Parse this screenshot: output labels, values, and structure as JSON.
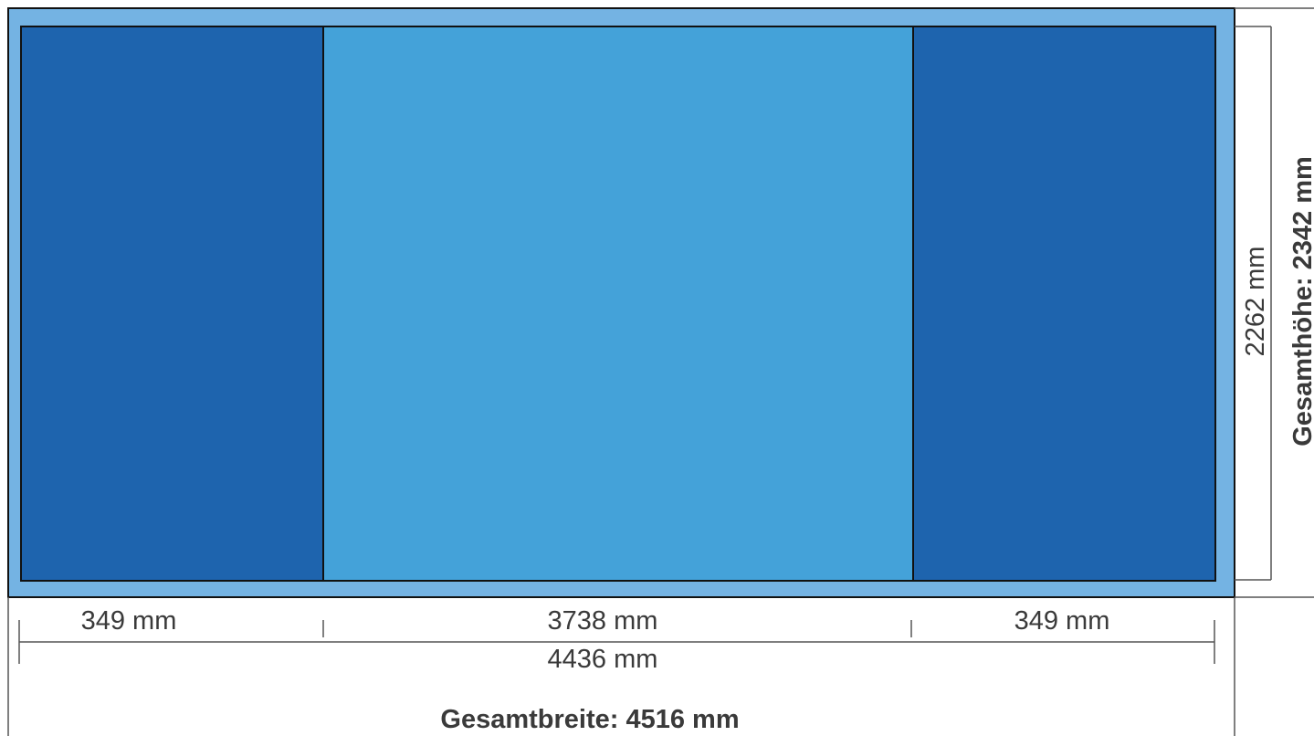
{
  "colors": {
    "frame": "#74b3e3",
    "side_panel": "#1e64ae",
    "center_panel": "#44a2d9",
    "outline": "#111111",
    "dim_line": "#555555",
    "text": "#3a3a3a"
  },
  "panels": [
    {
      "id": "left",
      "width_mm": 349,
      "color": "side"
    },
    {
      "id": "center",
      "width_mm": 3738,
      "color": "center"
    },
    {
      "id": "right",
      "width_mm": 349,
      "color": "side"
    }
  ],
  "dimensions": {
    "left_width": "349 mm",
    "center_width": "3738 mm",
    "right_width": "349 mm",
    "inner_width": "4436 mm",
    "inner_height": "2262 mm",
    "total_width": "Gesamtbreite: 4516 mm",
    "total_height": "Gesamthöhe: 2342 mm"
  }
}
